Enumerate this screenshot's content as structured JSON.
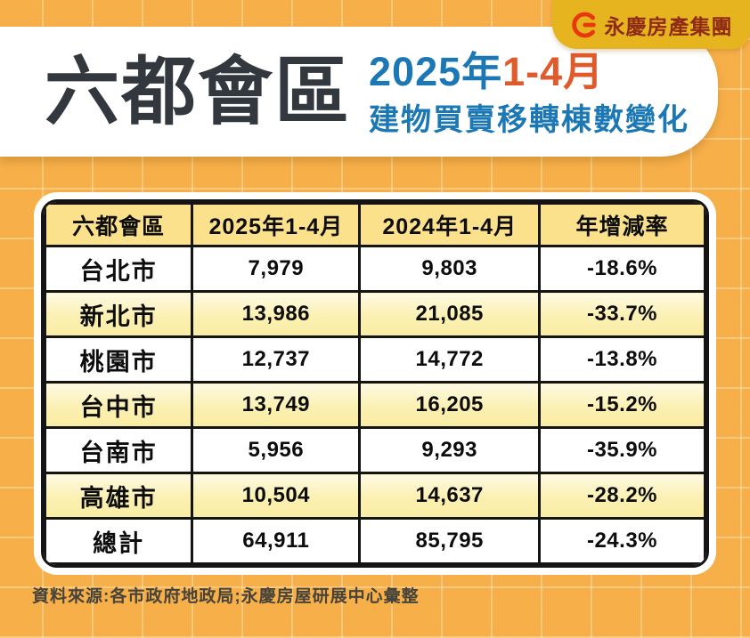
{
  "brand": {
    "name": "永慶房產集團",
    "logo_icon": "yungching-circle-g-icon",
    "badge_bg": "#E6B41E",
    "logo_red": "#E8380D",
    "name_color": "#8F2B15"
  },
  "header": {
    "title": "六都會區",
    "period_year": "2025年",
    "period_months": "1-4月",
    "subtitle": "建物買賣移轉棟數變化",
    "title_color": "#33383E",
    "blue": "#1B78B5",
    "orange": "#E05A2B"
  },
  "chart_data": {
    "type": "table",
    "title": "六都會區 2025年1-4月 建物買賣移轉棟數變化",
    "columns": [
      "六都會區",
      "2025年1-4月",
      "2024年1-4月",
      "年增減率"
    ],
    "rows": [
      [
        "台北市",
        "7,979",
        "9,803",
        "-18.6%"
      ],
      [
        "新北市",
        "13,986",
        "21,085",
        "-33.7%"
      ],
      [
        "桃園市",
        "12,737",
        "14,772",
        "-13.8%"
      ],
      [
        "台中市",
        "13,749",
        "16,205",
        "-15.2%"
      ],
      [
        "台南市",
        "5,956",
        "9,293",
        "-35.9%"
      ],
      [
        "高雄市",
        "10,504",
        "14,637",
        "-28.2%"
      ],
      [
        "總計",
        "64,911",
        "85,795",
        "-24.3%"
      ]
    ],
    "layout_hints": {
      "highlighted_rows": [
        "新北市",
        "台中市",
        "高雄市"
      ],
      "header_row_bg": "#FBE18B",
      "highlight_row_bg": "#FBF0B2",
      "border_color": "#141414",
      "page_bg": "#F6AF49"
    }
  },
  "footer": {
    "source": "資料來源:各市政府地政局;永慶房屋研展中心彙整"
  }
}
